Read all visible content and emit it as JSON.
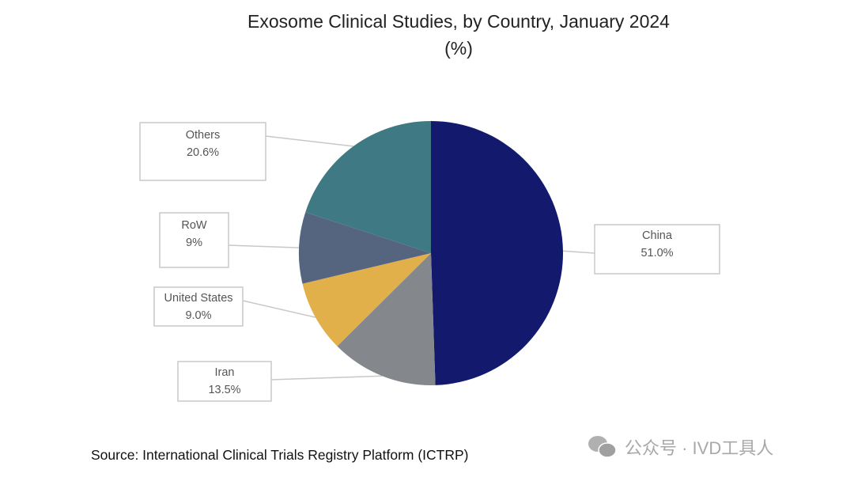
{
  "chart_data": {
    "type": "pie",
    "title": "Exosome Clinical Studies, by Country, January 2024",
    "subtitle": "(%)",
    "slices": [
      {
        "label": "China",
        "value": 51.0,
        "value_label": "51.0%",
        "color": "#131a6e"
      },
      {
        "label": "Iran",
        "value": 13.5,
        "value_label": "13.5%",
        "color": "#84878c"
      },
      {
        "label": "United States",
        "value": 9.0,
        "value_label": "9.0%",
        "color": "#e2b04a"
      },
      {
        "label": "RoW",
        "value": 9,
        "value_label": "9%",
        "color": "#56657f"
      },
      {
        "label": "Others",
        "value": 20.6,
        "value_label": "20.6%",
        "color": "#3f7a84"
      }
    ],
    "start": "top",
    "direction": "clockwise"
  },
  "source": "Source:  International Clinical Trials Registry Platform (ICTRP)",
  "watermark": "公众号 · IVD工具人"
}
